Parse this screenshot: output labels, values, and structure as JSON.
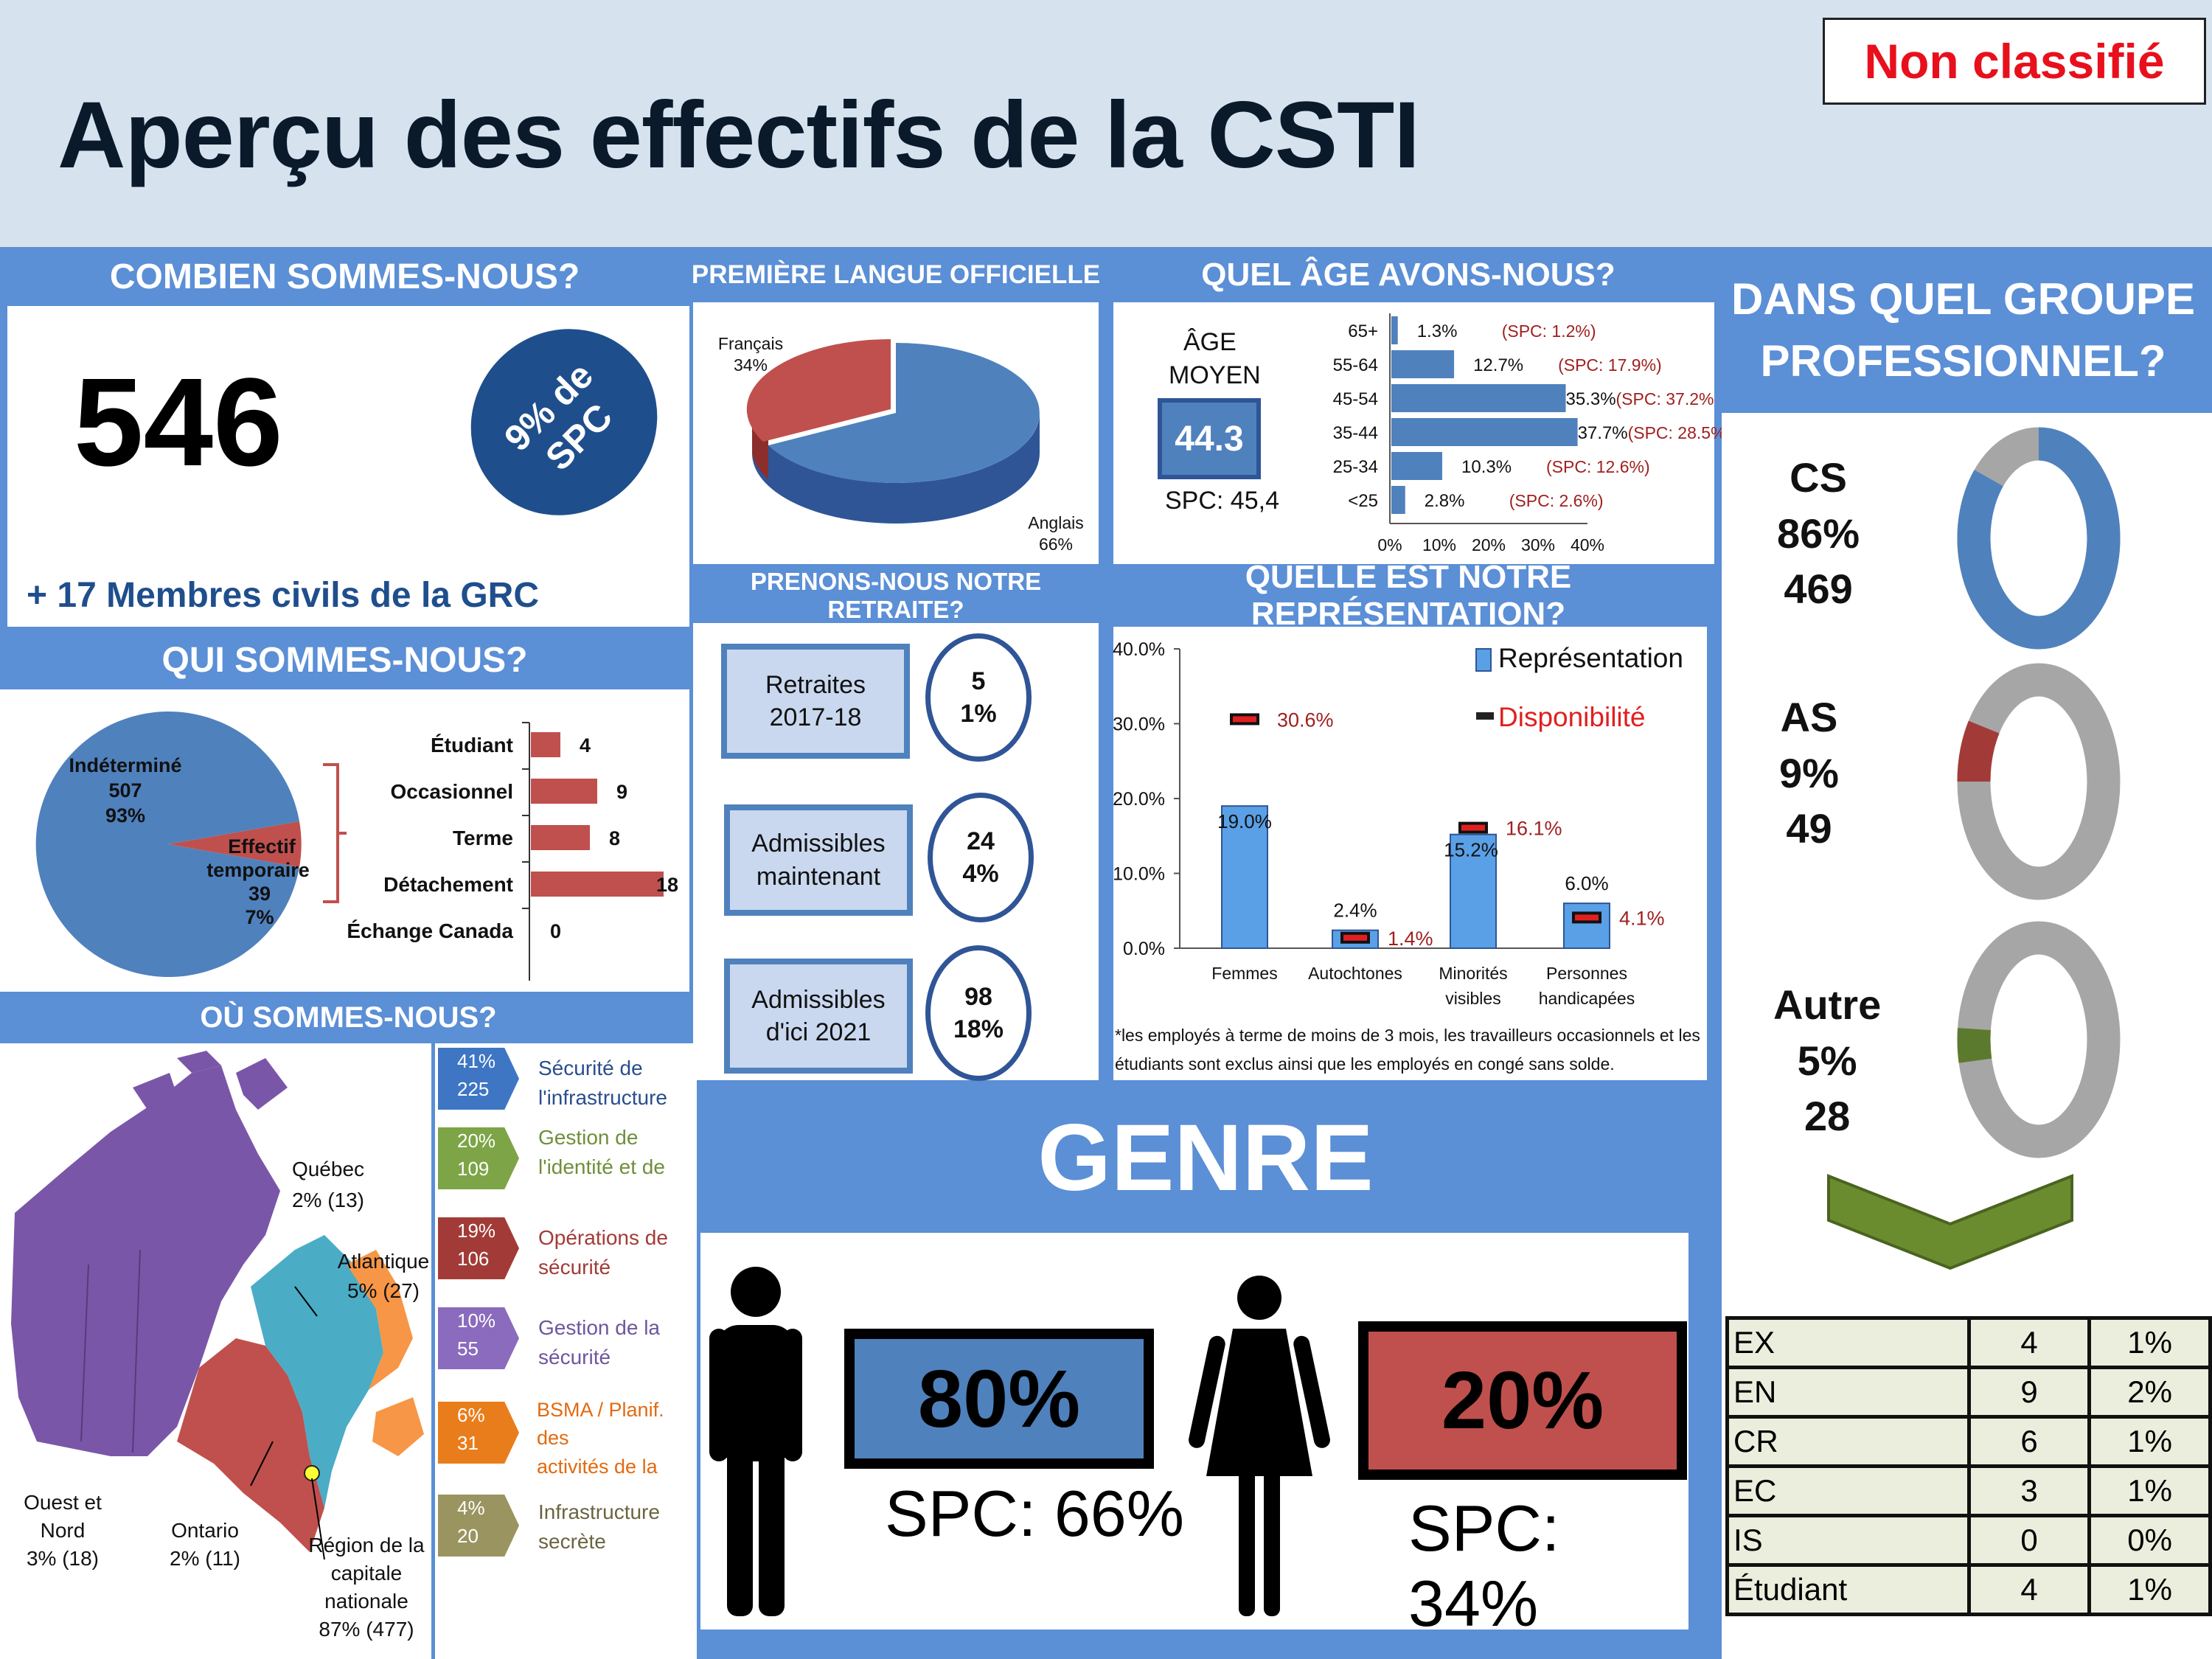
{
  "header": {
    "title": "Aperçu des effectifs de la CSTI",
    "classification": "Non classifié",
    "colors": {
      "banner": "#d6e3ef",
      "title": "#0b1a2b",
      "classification": "#e8101c"
    }
  },
  "combien": {
    "heading": "COMBIEN SOMMES-NOUS?",
    "total": "546",
    "badge_line1": "9% de",
    "badge_line2": "SPC",
    "note": "+ 17 Membres civils de la GRC"
  },
  "qui": {
    "heading": "QUI SOMMES-NOUS?",
    "pie": [
      {
        "label": "Indéterminé",
        "value": "507",
        "pct": "93%"
      },
      {
        "label_line1": "Effectif",
        "label_line2": "temporaire",
        "value": "39",
        "pct": "7%"
      }
    ],
    "bars": [
      {
        "label": "Étudiant",
        "value": "4"
      },
      {
        "label": "Occasionnel",
        "value": "9"
      },
      {
        "label": "Terme",
        "value": "8"
      },
      {
        "label": "Détachement",
        "value": "18"
      },
      {
        "label": "Échange Canada",
        "value": "0"
      }
    ]
  },
  "langue": {
    "heading": "PREMIÈRE LANGUE OFFICIELLE",
    "francais_label": "Français",
    "francais_pct": "34%",
    "anglais_label": "Anglais",
    "anglais_pct": "66%"
  },
  "age": {
    "heading": "QUEL ÂGE AVONS-NOUS?",
    "label_line1": "ÂGE",
    "label_line2": "MOYEN",
    "average": "44.3",
    "spc": "SPC: 45,4",
    "xticks": [
      "0%",
      "10%",
      "20%",
      "30%",
      "40%"
    ]
  },
  "chart_data": [
    {
      "type": "bar",
      "orientation": "horizontal",
      "categories": [
        "65+",
        "55-64",
        "45-54",
        "35-44",
        "25-34",
        "<25"
      ],
      "values": [
        1.3,
        12.7,
        35.3,
        37.7,
        10.3,
        2.8
      ],
      "value_labels": [
        "1.3%",
        "12.7%",
        "35.3%",
        "37.7%",
        "10.3%",
        "2.8%"
      ],
      "annotations": [
        "(SPC: 1.2%)",
        "(SPC: 17.9%)",
        "(SPC: 37.2%)",
        "(SPC: 28.5%)",
        "(SPC: 12.6%)",
        "(SPC: 2.6%)"
      ],
      "xlim": [
        0,
        40
      ],
      "xticks": [
        "0%",
        "10%",
        "20%",
        "30%",
        "40%"
      ],
      "color": "#4f81bd"
    },
    {
      "type": "bar",
      "categories": [
        "Femmes",
        "Autochtones",
        "Minorités visibles",
        "Personnes handicapées"
      ],
      "series": [
        {
          "name": "Représentation",
          "values": [
            19.0,
            2.4,
            15.2,
            6.0
          ],
          "labels": [
            "19.0%",
            "2.4%",
            "15.2%",
            "6.0%"
          ],
          "color": "#5aa0e6"
        },
        {
          "name": "Disponibilité",
          "values": [
            30.6,
            1.4,
            16.1,
            4.1
          ],
          "labels": [
            "30.6%",
            "1.4%",
            "16.1%",
            "4.1%"
          ],
          "color": "#e02020"
        }
      ],
      "ylim": [
        0,
        40
      ],
      "yticks": [
        "0.0%",
        "10.0%",
        "20.0%",
        "30.0%",
        "40.0%"
      ],
      "legend": "top-right"
    },
    {
      "type": "pie",
      "categories": [
        "Indéterminé",
        "Effectif temporaire"
      ],
      "values": [
        93,
        7
      ]
    },
    {
      "type": "bar",
      "orientation": "horizontal",
      "categories": [
        "Étudiant",
        "Occasionnel",
        "Terme",
        "Détachement",
        "Échange Canada"
      ],
      "values": [
        4,
        9,
        8,
        18,
        0
      ]
    },
    {
      "type": "pie",
      "categories": [
        "Anglais",
        "Français"
      ],
      "values": [
        66,
        34
      ]
    }
  ],
  "retraite": {
    "heading": "PRENONS-NOUS NOTRE RETRAITE?",
    "rows": [
      {
        "line1": "Retraites",
        "line2": "2017-18",
        "count": "5",
        "pct": "1%"
      },
      {
        "line1": "Admissibles",
        "line2": "maintenant",
        "count": "24",
        "pct": "4%"
      },
      {
        "line1": "Admissibles",
        "line2": "d'ici 2021",
        "count": "98",
        "pct": "18%"
      }
    ]
  },
  "representation": {
    "heading": "QUELLE EST NOTRE REPRÉSENTATION?",
    "legend_repr": "Représentation",
    "legend_dispo": "Disponibilité",
    "categories": [
      [
        "Femmes"
      ],
      [
        "Autochtones"
      ],
      [
        "Minorités",
        "visibles"
      ],
      [
        "Personnes",
        "handicapées"
      ]
    ],
    "note_line1": "*les employés à terme de moins de 3 mois, les travailleurs occasionnels et les",
    "note_line2": "étudiants sont exclus ainsi que les employés en congé sans solde."
  },
  "ou": {
    "heading": "OÙ SOMMES-NOUS?",
    "regions": [
      {
        "name_line1": "Québec",
        "value": "2% (13)"
      },
      {
        "name_line1": "Atlantique",
        "value": "5% (27)"
      },
      {
        "name_line1": "Ouest et",
        "name_line2": "Nord",
        "value": "3% (18)"
      },
      {
        "name_line1": "Ontario",
        "value": "2% (11)"
      },
      {
        "name_line1": "Région de la",
        "name_line2": "capitale",
        "name_line3": "nationale",
        "value": "87% (477)"
      }
    ],
    "branches": [
      {
        "pct": "41%",
        "count": "225",
        "line1": "Sécurité de",
        "line2": "l'infrastructure",
        "color": "#3e76c4",
        "text_color": "#2a4e8c"
      },
      {
        "pct": "20%",
        "count": "109",
        "line1": "Gestion de",
        "line2": "l'identité et de",
        "color": "#7da446",
        "text_color": "#6f8f3a"
      },
      {
        "pct": "19%",
        "count": "106",
        "line1": "Opérations de",
        "line2": "sécurité",
        "color": "#a23b38",
        "text_color": "#a23b38"
      },
      {
        "pct": "10%",
        "count": "55",
        "line1": "Gestion de la",
        "line2": "sécurité",
        "color": "#8a6bbd",
        "text_color": "#6f559e"
      },
      {
        "pct": "6%",
        "count": "31",
        "line1": "BSMA / Planif. des",
        "line2": "activités de la",
        "color": "#e97d1b",
        "text_color": "#e26a10"
      },
      {
        "pct": "4%",
        "count": "20",
        "line1": "Infrastructure",
        "line2": "secrète",
        "color": "#9a9460",
        "text_color": "#6a6540"
      }
    ]
  },
  "genre": {
    "heading": "GENRE",
    "men_pct": "80%",
    "men_spc": "SPC: 66%",
    "women_pct": "20%",
    "women_spc": "SPC: 34%"
  },
  "groupe": {
    "heading_line1": "DANS QUEL GROUPE",
    "heading_line2": "PROFESSIONNEL?",
    "donuts": [
      {
        "code": "CS",
        "pct": "86%",
        "count": "469",
        "share": 0.86,
        "color": "#4f81bd"
      },
      {
        "code": "AS",
        "pct": "9%",
        "count": "49",
        "share": 0.09,
        "color": "#a23b38"
      },
      {
        "code": "Autre",
        "pct": "5%",
        "count": "28",
        "share": 0.05,
        "color": "#5c7a2e"
      }
    ],
    "table": [
      {
        "code": "EX",
        "count": "4",
        "pct": "1%"
      },
      {
        "code": "EN",
        "count": "9",
        "pct": "2%"
      },
      {
        "code": "CR",
        "count": "6",
        "pct": "1%"
      },
      {
        "code": "EC",
        "count": "3",
        "pct": "1%"
      },
      {
        "code": "IS",
        "count": "0",
        "pct": "0%"
      },
      {
        "code": "Étudiant",
        "count": "4",
        "pct": "1%"
      }
    ]
  }
}
